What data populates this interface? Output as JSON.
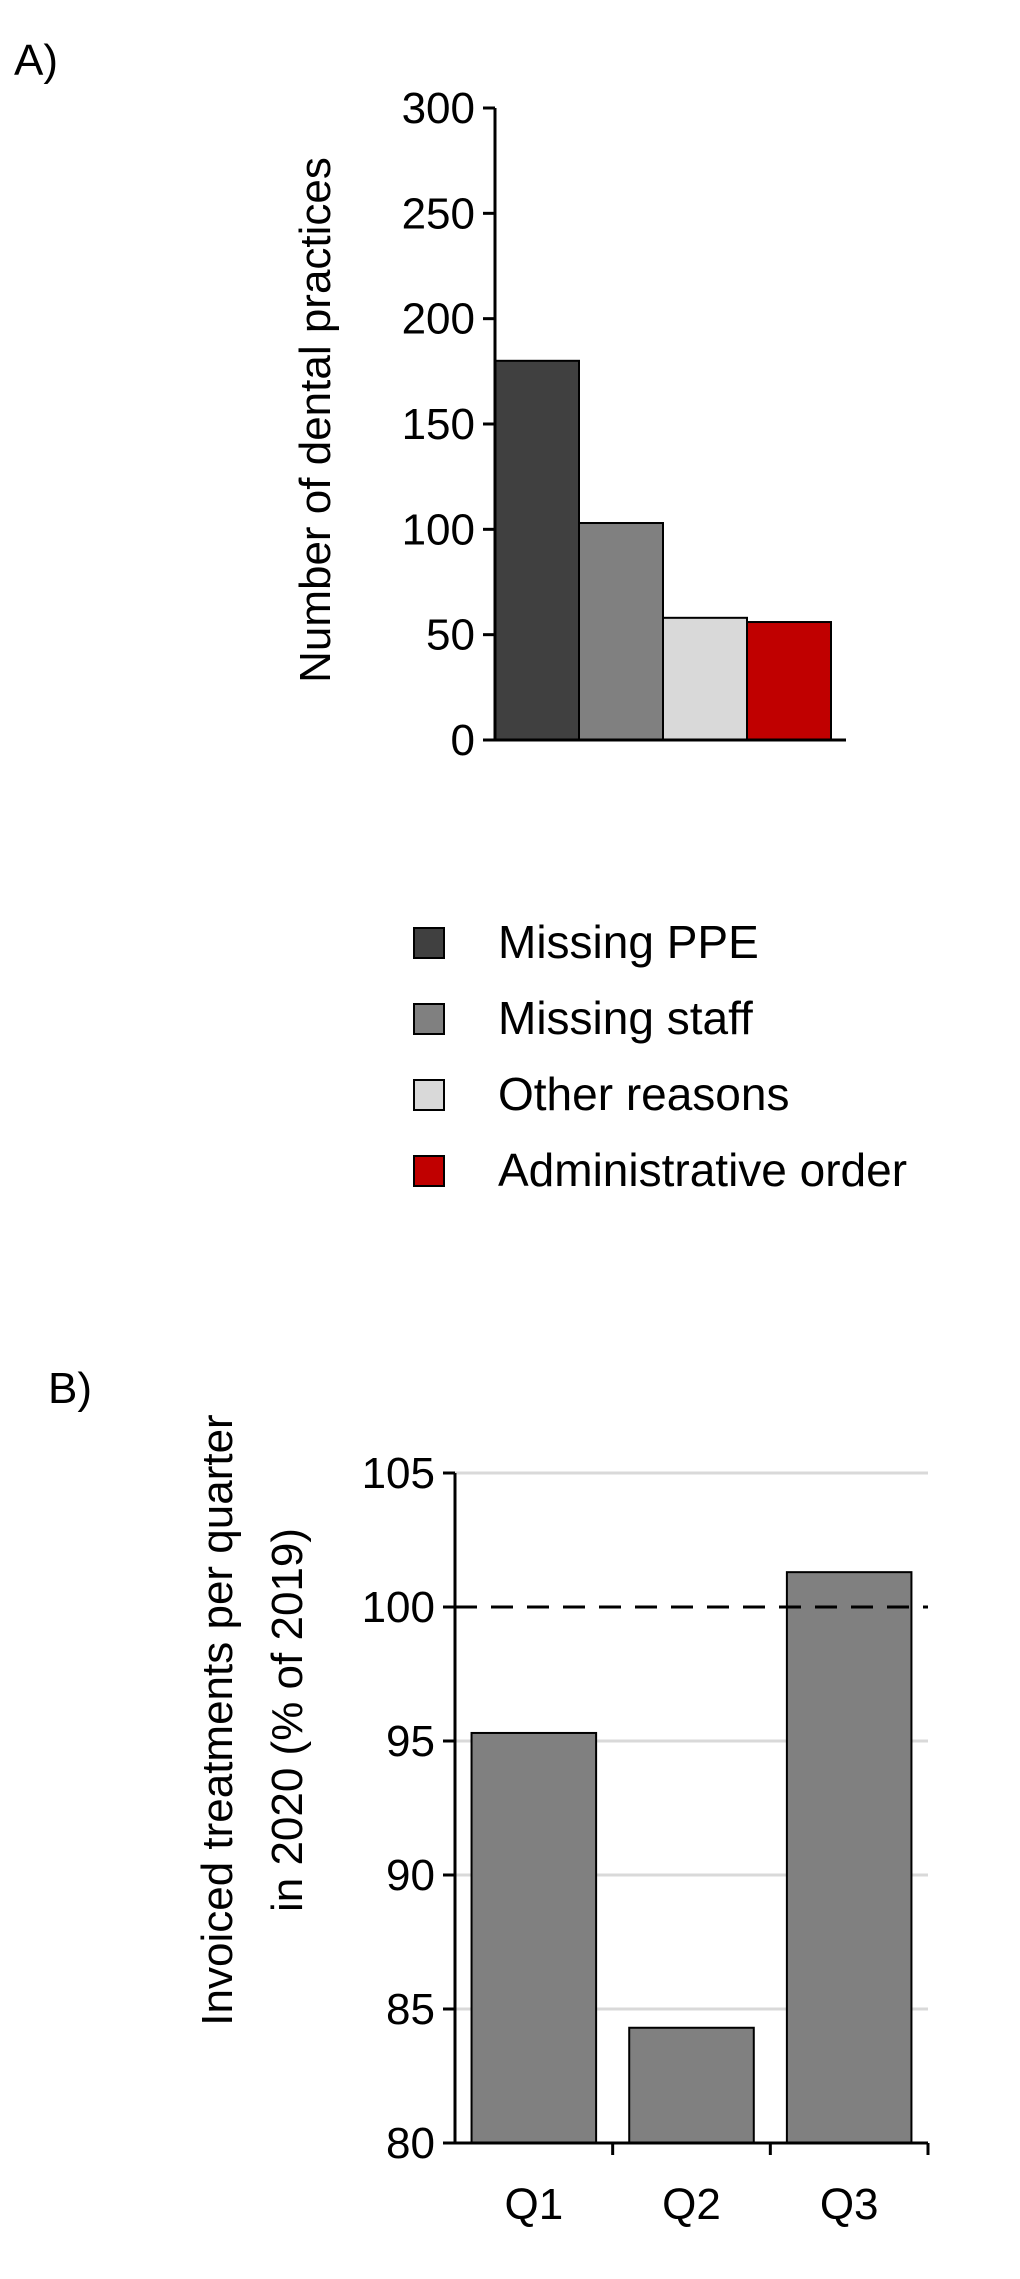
{
  "panels": [
    {
      "label": "A)",
      "chart_data": {
        "type": "bar",
        "ylabel": "Number of dental practices",
        "ylim": [
          0,
          300
        ],
        "yticks": [
          0,
          50,
          100,
          150,
          200,
          250,
          300
        ],
        "series": [
          {
            "name": "Missing PPE",
            "value": 180,
            "color": "#404040"
          },
          {
            "name": "Missing staff",
            "value": 103,
            "color": "#808080"
          },
          {
            "name": "Other reasons",
            "value": 58,
            "color": "#d9d9d9"
          },
          {
            "name": "Administrative order",
            "value": 56,
            "color": "#c00000"
          }
        ],
        "legend": "below"
      }
    },
    {
      "label": "B)",
      "chart_data": {
        "type": "bar",
        "ylabel_lines": [
          "Invoiced treatments per quarter",
          "in 2020 (% of 2019)"
        ],
        "ylim": [
          80,
          105
        ],
        "yticks": [
          80,
          85,
          90,
          95,
          100,
          105
        ],
        "categories": [
          "Q1",
          "Q2",
          "Q3"
        ],
        "values": [
          95.3,
          84.3,
          101.3
        ],
        "bar_color": "#808080",
        "reference_line": 100,
        "grid": true
      }
    }
  ]
}
